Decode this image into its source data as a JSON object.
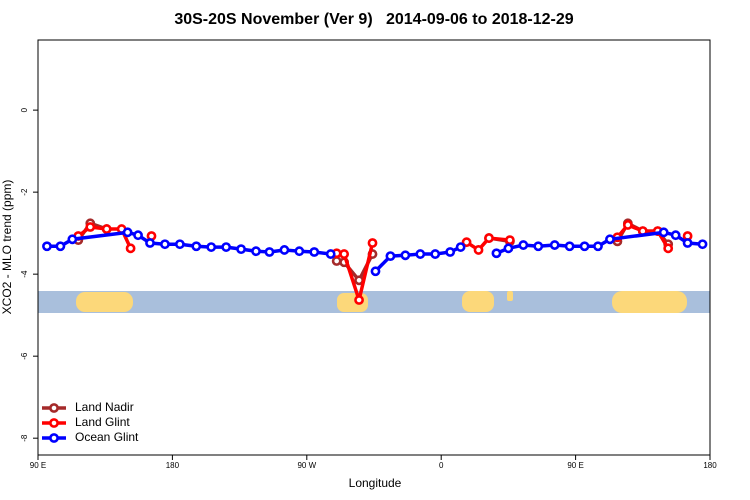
{
  "chart_data": {
    "type": "line",
    "title": "30S-20S November (Ver 9)   2014-09-06 to 2018-12-29",
    "x_label": "Longitude",
    "y_label": "XCO2 - MLO trend (ppm)",
    "xlim": [
      90,
      540
    ],
    "xticks": [
      {
        "value": 90,
        "label": "90 E"
      },
      180,
      {
        "value": 270,
        "label": "90 W"
      },
      {
        "value": 360,
        "label": "0"
      },
      {
        "value": 450,
        "label": "90 E"
      },
      {
        "value": 540,
        "label": "180"
      }
    ],
    "ylim": [
      -8.41,
      1.71
    ],
    "yticks": [
      0,
      -2,
      -4,
      -6,
      -8
    ],
    "legend": "bottom-left",
    "series": [
      {
        "name": "Land Nadir",
        "color": "#a52a2a",
        "x": [
          117,
          125,
          136,
          159,
          290,
          295,
          305,
          314,
          345,
          392,
          406,
          440,
          478,
          485,
          495,
          505,
          512
        ],
        "values": [
          -3.17,
          -2.76,
          -2.9,
          null,
          -3.68,
          -3.71,
          -4.15,
          -3.51,
          null,
          -3.12,
          -3.2,
          null,
          -3.2,
          -2.76,
          -2.95,
          -2.95,
          -3.27
        ]
      },
      {
        "name": "Land Glint",
        "color": "#ff0000",
        "x": [
          117,
          125,
          136,
          146,
          152,
          159,
          166,
          230,
          290,
          295,
          305,
          314,
          345,
          377,
          385,
          392,
          406,
          440,
          478,
          485,
          495,
          505,
          512,
          518,
          525
        ],
        "values": [
          -3.07,
          -2.85,
          -2.9,
          -2.9,
          -3.37,
          null,
          -3.07,
          null,
          -3.49,
          -3.51,
          -4.63,
          -3.24,
          null,
          -3.22,
          -3.41,
          -3.12,
          -3.17,
          null,
          -3.1,
          -2.8,
          -2.95,
          -2.95,
          -3.37,
          null,
          -3.07
        ]
      },
      {
        "name": "Ocean Glint",
        "color": "#0000ff",
        "x": [
          96,
          105,
          113,
          150,
          157,
          165,
          175,
          185,
          196,
          206,
          216,
          226,
          236,
          245,
          255,
          265,
          275,
          286,
          300,
          316,
          326,
          336,
          346,
          356,
          366,
          373,
          385,
          397,
          405,
          415,
          425,
          436,
          446,
          456,
          465,
          473,
          509,
          517,
          525,
          535
        ],
        "values": [
          -3.32,
          -3.32,
          -3.15,
          -2.98,
          -3.05,
          -3.24,
          -3.27,
          -3.27,
          -3.32,
          -3.34,
          -3.34,
          -3.39,
          -3.44,
          -3.46,
          -3.41,
          -3.44,
          -3.46,
          -3.51,
          null,
          -3.93,
          -3.56,
          -3.54,
          -3.51,
          -3.51,
          -3.46,
          -3.34,
          null,
          -3.49,
          -3.37,
          -3.29,
          -3.32,
          -3.29,
          -3.32,
          -3.32,
          -3.32,
          -3.15,
          -2.98,
          -3.05,
          -3.24,
          -3.27
        ]
      }
    ]
  }
}
